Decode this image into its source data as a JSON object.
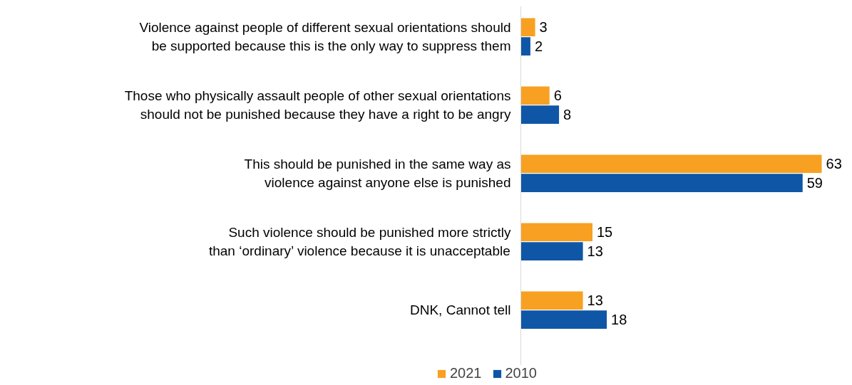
{
  "chart_data": {
    "type": "bar",
    "orientation": "horizontal",
    "data_labels": true,
    "legend": "bottom",
    "grid": false,
    "categories": [
      "Violence against people of different sexual orientations should\nbe supported because this is the only way to suppress them",
      "Those who physically assault people of other sexual orientations\nshould not be punished because they have a right to be angry",
      "This should be punished in the same way as\nviolence against anyone else is punished",
      "Such violence should be punished more strictly\nthan ‘ordinary’ violence because it is unacceptable",
      "DNK, Cannot tell"
    ],
    "series": [
      {
        "name": "2021",
        "color": "#f7a021",
        "values": [
          3,
          6,
          63,
          15,
          13
        ]
      },
      {
        "name": "2010",
        "color": "#0f56a6",
        "values": [
          2,
          8,
          59,
          13,
          18
        ]
      }
    ]
  }
}
